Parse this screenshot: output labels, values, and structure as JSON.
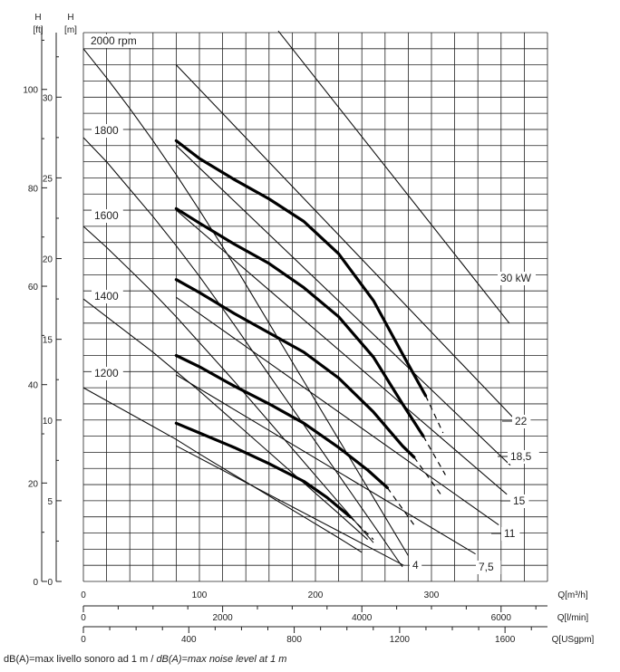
{
  "chart_data": {
    "type": "line",
    "title": "",
    "axes": {
      "left_ft": {
        "label_line1": "H",
        "label_line2": "[ft]",
        "ticks": [
          0,
          20,
          40,
          60,
          80,
          100
        ]
      },
      "left_m": {
        "label_line1": "H",
        "label_line2": "[m]",
        "ticks": [
          0,
          5,
          10,
          15,
          20,
          25,
          30
        ],
        "range": [
          0,
          34
        ]
      },
      "bottom": [
        {
          "label": "Q[m³/h]",
          "ticks": [
            0,
            100,
            200,
            300
          ],
          "range": [
            0,
            400
          ]
        },
        {
          "label": "Q[l/min]",
          "ticks": [
            0,
            2000,
            4000,
            6000
          ]
        },
        {
          "label": "Q[USgpm]",
          "ticks": [
            0,
            400,
            800,
            1200,
            1600
          ]
        }
      ]
    },
    "grid": true,
    "speed_curves": [
      {
        "name": "2000 rpm",
        "points": [
          [
            0,
            33
          ],
          [
            20,
            31.2
          ],
          [
            40,
            29.3
          ],
          [
            60,
            27.3
          ],
          [
            80,
            25.2
          ],
          [
            100,
            23.0
          ],
          [
            130,
            19.6
          ],
          [
            160,
            16.0
          ],
          [
            190,
            12.4
          ],
          [
            220,
            8.8
          ],
          [
            250,
            5.2
          ],
          [
            280,
            1.6
          ]
        ]
      },
      {
        "name": "1800",
        "points": [
          [
            0,
            27.5
          ],
          [
            20,
            26.0
          ],
          [
            40,
            24.3
          ],
          [
            60,
            22.6
          ],
          [
            80,
            20.8
          ],
          [
            100,
            18.9
          ],
          [
            130,
            15.9
          ],
          [
            160,
            12.8
          ],
          [
            190,
            9.7
          ],
          [
            220,
            6.6
          ],
          [
            250,
            3.5
          ],
          [
            275,
            0.9
          ]
        ]
      },
      {
        "name": "1600",
        "points": [
          [
            0,
            22
          ],
          [
            20,
            20.7
          ],
          [
            40,
            19.3
          ],
          [
            60,
            17.9
          ],
          [
            80,
            16.4
          ],
          [
            100,
            14.8
          ],
          [
            130,
            12.4
          ],
          [
            160,
            9.9
          ],
          [
            190,
            7.4
          ],
          [
            220,
            4.9
          ],
          [
            250,
            2.4
          ]
        ]
      },
      {
        "name": "1400",
        "points": [
          [
            0,
            17.5
          ],
          [
            20,
            16.4
          ],
          [
            40,
            15.3
          ],
          [
            60,
            14.2
          ],
          [
            80,
            13.0
          ],
          [
            100,
            11.8
          ],
          [
            130,
            9.9
          ],
          [
            160,
            8.0
          ],
          [
            190,
            6.1
          ],
          [
            220,
            4.2
          ],
          [
            245,
            2.6
          ]
        ]
      },
      {
        "name": "1200",
        "points": [
          [
            0,
            12
          ],
          [
            20,
            11.2
          ],
          [
            40,
            10.4
          ],
          [
            60,
            9.6
          ],
          [
            80,
            8.8
          ],
          [
            100,
            7.9
          ],
          [
            130,
            6.6
          ],
          [
            160,
            5.3
          ],
          [
            190,
            4.0
          ],
          [
            220,
            2.7
          ],
          [
            240,
            1.8
          ]
        ]
      }
    ],
    "power_lines": [
      {
        "name": "30 kW",
        "points": [
          [
            168,
            34.1
          ],
          [
            367,
            16.0
          ]
        ]
      },
      {
        "name": "22",
        "points": [
          [
            80,
            32.0
          ],
          [
            375,
            9.8
          ]
        ]
      },
      {
        "name": "18,5",
        "points": [
          [
            80,
            27.0
          ],
          [
            368,
            7.2
          ]
        ]
      },
      {
        "name": "15",
        "points": [
          [
            80,
            23.0
          ],
          [
            365,
            5.4
          ]
        ]
      },
      {
        "name": "11",
        "points": [
          [
            80,
            17.6
          ],
          [
            358,
            3.5
          ]
        ]
      },
      {
        "name": "7,5",
        "points": [
          [
            80,
            12.8
          ],
          [
            338,
            1.7
          ]
        ]
      },
      {
        "name": "4",
        "points": [
          [
            80,
            8.4
          ],
          [
            276,
            1.0
          ]
        ]
      }
    ],
    "operating_curves": [
      {
        "points": [
          [
            80,
            27.3
          ],
          [
            100,
            26.2
          ],
          [
            130,
            24.9
          ],
          [
            160,
            23.7
          ],
          [
            190,
            22.3
          ],
          [
            220,
            20.3
          ],
          [
            250,
            17.4
          ],
          [
            275,
            14.1
          ],
          [
            295,
            11.5
          ]
        ],
        "dashed_tail": [
          [
            295,
            11.5
          ],
          [
            310,
            9.2
          ]
        ]
      },
      {
        "points": [
          [
            80,
            23.1
          ],
          [
            100,
            22.2
          ],
          [
            130,
            20.9
          ],
          [
            160,
            19.7
          ],
          [
            190,
            18.2
          ],
          [
            220,
            16.4
          ],
          [
            250,
            13.9
          ],
          [
            275,
            11.0
          ],
          [
            293,
            9.0
          ]
        ],
        "dashed_tail": [
          [
            293,
            9.0
          ],
          [
            312,
            6.6
          ]
        ]
      },
      {
        "points": [
          [
            80,
            18.7
          ],
          [
            100,
            17.9
          ],
          [
            130,
            16.6
          ],
          [
            160,
            15.4
          ],
          [
            190,
            14.2
          ],
          [
            220,
            12.6
          ],
          [
            250,
            10.5
          ],
          [
            275,
            8.4
          ],
          [
            285,
            7.7
          ]
        ],
        "dashed_tail": [
          [
            285,
            7.7
          ],
          [
            308,
            5.4
          ]
        ]
      },
      {
        "points": [
          [
            80,
            14.0
          ],
          [
            100,
            13.3
          ],
          [
            130,
            12.1
          ],
          [
            160,
            11.0
          ],
          [
            190,
            9.8
          ],
          [
            220,
            8.3
          ],
          [
            245,
            6.9
          ],
          [
            262,
            5.8
          ]
        ],
        "dashed_tail": [
          [
            262,
            5.8
          ],
          [
            285,
            3.5
          ]
        ]
      },
      {
        "points": [
          [
            80,
            9.8
          ],
          [
            100,
            9.2
          ],
          [
            130,
            8.3
          ],
          [
            160,
            7.3
          ],
          [
            190,
            6.2
          ],
          [
            210,
            5.2
          ],
          [
            230,
            4.0
          ]
        ],
        "dashed_tail": [
          [
            230,
            4.0
          ],
          [
            250,
            2.6
          ]
        ]
      }
    ]
  },
  "footnote": {
    "text_regular": "dB(A)=max livello sonoro ad 1 m / ",
    "text_italic": "dB(A)=max noise level at 1 m"
  }
}
